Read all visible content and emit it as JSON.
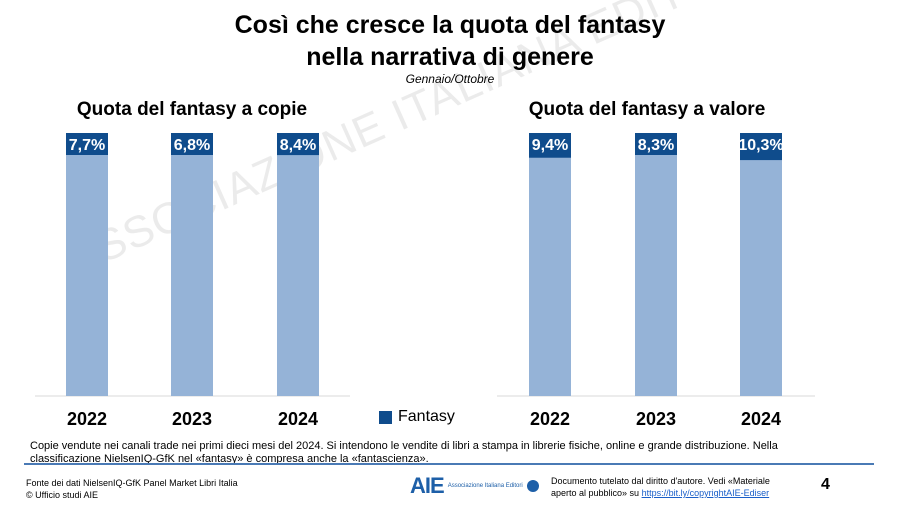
{
  "title_line1": "Così che cresce la quota del fantasy",
  "title_line2": "nella narrativa di genere",
  "subtitle": "Gennaio/Ottobre",
  "watermark": "ASSOCIAZIONE ITALIANA EDITORI",
  "legend": {
    "label": "Fantasy",
    "color": "#0f4c8c"
  },
  "colors": {
    "fantasy": "#0f4c8c",
    "rest": "#95b3d7"
  },
  "chart_data": [
    {
      "type": "bar",
      "stacked": "100%",
      "title": "Quota del fantasy a copie",
      "categories": [
        "2022",
        "2023",
        "2024"
      ],
      "values": [
        7.7,
        6.8,
        8.4
      ],
      "labels": [
        "7,7%",
        "6,8%",
        "8,4%"
      ],
      "ylim": [
        0,
        100
      ],
      "grid": false
    },
    {
      "type": "bar",
      "stacked": "100%",
      "title": "Quota del fantasy a valore",
      "categories": [
        "2022",
        "2023",
        "2024"
      ],
      "values": [
        9.4,
        8.3,
        10.3
      ],
      "labels": [
        "9,4%",
        "8,3%",
        "10,3%"
      ],
      "ylim": [
        0,
        100
      ],
      "grid": false
    }
  ],
  "note": "Copie vendute nei canali trade nei primi dieci mesi del 2024. Si intendono le vendite di libri a stampa in librerie fisiche, online e grande distribuzione. Nella classificazione NielsenIQ-GfK nel «fantasy» è compresa anche la «fantascienza».",
  "footer": {
    "source": "Fonte dei dati NielsenIQ-GfK Panel Market Libri Italia",
    "copyright": "© Ufficio studi AIE",
    "logo_text": "AIE",
    "logo_sub": "Associazione Italiana Editori",
    "rights_text": "Documento tutelato dal diritto d'autore. Vedi «Materiale aperto al pubblico» su",
    "rights_link": "https://bit.ly/copyrightAIE-Ediser",
    "page_number": "4"
  }
}
